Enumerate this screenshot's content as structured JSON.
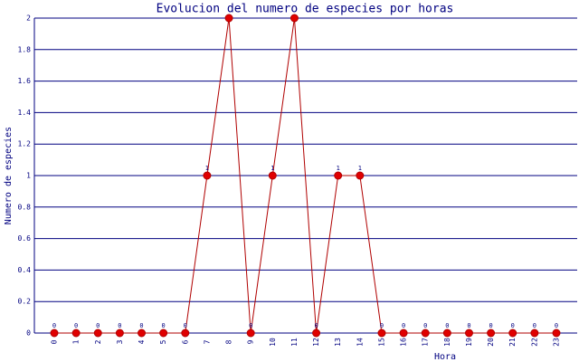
{
  "chart_data": {
    "type": "line",
    "title": "Evolucion del numero de especies por horas",
    "xlabel": "Hora",
    "ylabel": "Numero de especies",
    "categories": [
      "0",
      "1",
      "2",
      "3",
      "4",
      "5",
      "6",
      "7",
      "8",
      "9",
      "10",
      "11",
      "12",
      "13",
      "14",
      "15",
      "16",
      "17",
      "18",
      "19",
      "20",
      "21",
      "22",
      "23"
    ],
    "series": [
      {
        "name": "Numero de especies",
        "color": "#b00000",
        "values": [
          0,
          0,
          0,
          0,
          0,
          0,
          0,
          1,
          2,
          0,
          1,
          2,
          0,
          1,
          1,
          0,
          0,
          0,
          0,
          0,
          0,
          0,
          0,
          0
        ]
      }
    ],
    "ylim": [
      0,
      2
    ],
    "yticks": [
      0,
      0.2,
      0.4,
      0.6,
      0.8,
      1,
      1.2,
      1.4,
      1.6,
      1.8,
      2
    ],
    "grid": true
  }
}
